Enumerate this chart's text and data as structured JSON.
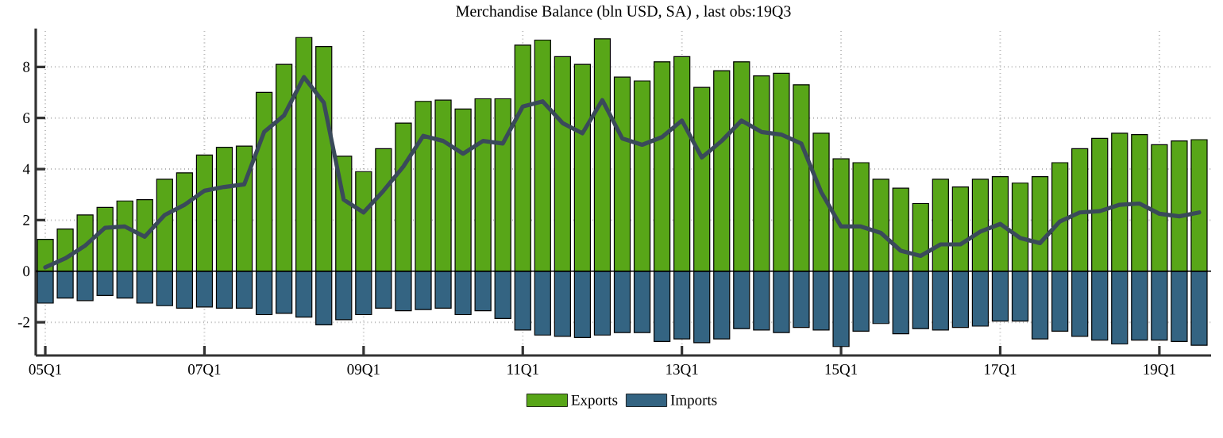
{
  "chart_data": {
    "type": "bar",
    "title": "Merchandise Balance (bln USD, SA) , last obs:19Q3",
    "categories": [
      "05Q1",
      null,
      null,
      null,
      null,
      null,
      null,
      null,
      "07Q1",
      null,
      null,
      null,
      null,
      null,
      null,
      null,
      "09Q1",
      null,
      null,
      null,
      null,
      null,
      null,
      null,
      "11Q1",
      null,
      null,
      null,
      null,
      null,
      null,
      null,
      "13Q1",
      null,
      null,
      null,
      null,
      null,
      null,
      null,
      "15Q1",
      null,
      null,
      null,
      null,
      null,
      null,
      null,
      "17Q1",
      null,
      null,
      null,
      null,
      null,
      null,
      null,
      "19Q1",
      null,
      null
    ],
    "series": [
      {
        "name": "Exports",
        "color": "#58a618",
        "values": [
          1.25,
          1.65,
          2.2,
          2.5,
          2.75,
          2.8,
          3.6,
          3.85,
          4.55,
          4.85,
          4.9,
          7.0,
          8.1,
          9.15,
          8.8,
          4.5,
          3.9,
          4.8,
          5.8,
          6.65,
          6.7,
          6.35,
          6.75,
          6.75,
          8.85,
          9.05,
          8.4,
          8.1,
          9.1,
          7.6,
          7.45,
          8.2,
          8.4,
          7.2,
          7.85,
          8.2,
          7.65,
          7.75,
          7.3,
          5.4,
          4.4,
          4.25,
          3.6,
          3.25,
          2.65,
          3.6,
          3.3,
          3.6,
          3.7,
          3.45,
          3.7,
          4.25,
          4.8,
          5.2,
          5.4,
          5.35,
          4.95,
          5.1,
          5.15
        ]
      },
      {
        "name": "Imports",
        "color": "#346482",
        "values": [
          -1.25,
          -1.05,
          -1.15,
          -0.95,
          -1.05,
          -1.25,
          -1.35,
          -1.45,
          -1.4,
          -1.45,
          -1.45,
          -1.7,
          -1.65,
          -1.8,
          -2.1,
          -1.9,
          -1.7,
          -1.45,
          -1.55,
          -1.5,
          -1.45,
          -1.7,
          -1.55,
          -1.85,
          -2.3,
          -2.5,
          -2.55,
          -2.6,
          -2.5,
          -2.4,
          -2.4,
          -2.75,
          -2.65,
          -2.8,
          -2.65,
          -2.25,
          -2.3,
          -2.4,
          -2.2,
          -2.3,
          -2.95,
          -2.35,
          -2.05,
          -2.45,
          -2.25,
          -2.3,
          -2.2,
          -2.15,
          -1.95,
          -1.95,
          -2.65,
          -2.35,
          -2.55,
          -2.7,
          -2.85,
          -2.7,
          -2.7,
          -2.75,
          -2.9
        ]
      },
      {
        "type": "line",
        "color": "#3a4a5a",
        "values": [
          0.15,
          0.5,
          1.0,
          1.7,
          1.75,
          1.35,
          2.2,
          2.6,
          3.15,
          3.3,
          3.4,
          5.45,
          6.1,
          7.6,
          6.6,
          2.8,
          2.3,
          3.15,
          4.1,
          5.3,
          5.1,
          4.6,
          5.1,
          5.0,
          6.45,
          6.65,
          5.8,
          5.4,
          6.7,
          5.2,
          4.95,
          5.25,
          5.9,
          4.45,
          5.1,
          5.9,
          5.45,
          5.35,
          5.0,
          3.1,
          1.75,
          1.75,
          1.5,
          0.8,
          0.6,
          1.05,
          1.05,
          1.55,
          1.85,
          1.3,
          1.1,
          1.95,
          2.3,
          2.35,
          2.6,
          2.65,
          2.25,
          2.15,
          2.3
        ]
      }
    ],
    "stacked": true,
    "ylim": [
      -3.3,
      9.5
    ],
    "yticks": [
      -2,
      0,
      2,
      4,
      6,
      8
    ],
    "ref_lines": [
      {
        "axis": "y",
        "value": 0,
        "color": "#000000"
      }
    ],
    "grid": true,
    "legend": "bottom"
  }
}
